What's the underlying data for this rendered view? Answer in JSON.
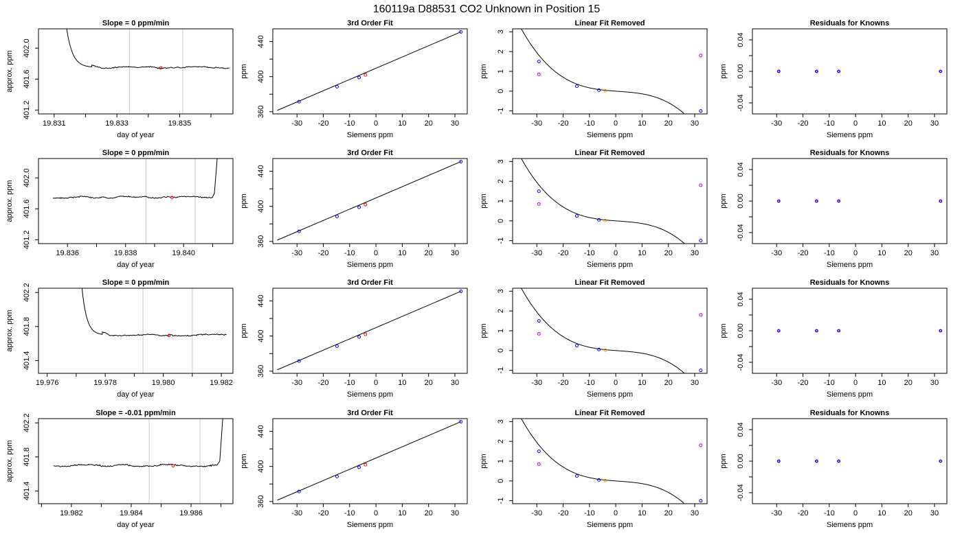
{
  "suptitle": "160119a     D88531    CO2 Unknown in Position  15",
  "colors": {
    "known_points": "#0000ff",
    "unknown_point": "#ff0000",
    "unknown_point_alt": "#ff8c00",
    "raw_residual_points": "#cc00cc",
    "curve": "#000000",
    "time_window_lines": "#c8c8c8"
  },
  "chart_data": [
    {
      "type": "line",
      "row": 0,
      "col": 0,
      "title": "Slope =  0  ppm/min",
      "xlabel": "day of year",
      "ylabel": "approx. ppm",
      "xlim": [
        19.8305,
        19.8367
      ],
      "ylim": [
        401.15,
        402.25
      ],
      "xticks": [
        19.831,
        19.833,
        19.835
      ],
      "xtick_labels": [
        "19.831",
        "19.833",
        "19.835"
      ],
      "xminor": [
        19.832,
        19.834,
        19.836
      ],
      "yticks": [
        401.2,
        401.6,
        402.0
      ],
      "ytick_labels": [
        "401.2",
        "401.6",
        "402.0"
      ],
      "window": [
        19.8334,
        19.8351
      ],
      "trace": {
        "start_x": 19.8314,
        "start_y": 402.25,
        "drop_end_x": 19.8322,
        "plateau_x": 19.8325,
        "end_x": 19.8366,
        "baseline": 401.75,
        "amplitude": 0.012,
        "seed": 3
      },
      "point": {
        "x": 19.8344,
        "y": 401.745
      }
    },
    {
      "type": "line",
      "row": 1,
      "col": 0,
      "title": "Slope =  0  ppm/min",
      "xlabel": "day of year",
      "ylabel": "approx. ppm",
      "xlim": [
        19.835,
        19.8417
      ],
      "ylim": [
        401.15,
        402.25
      ],
      "xticks": [
        19.836,
        19.838,
        19.84
      ],
      "xtick_labels": [
        "19.836",
        "19.838",
        "19.840"
      ],
      "xminor": [
        19.837,
        19.839,
        19.841
      ],
      "yticks": [
        401.2,
        401.6,
        402.0
      ],
      "ytick_labels": [
        "401.2",
        "401.6",
        "402.0"
      ],
      "window": [
        19.8387,
        19.8404
      ],
      "trace": {
        "start_x": 19.8355,
        "end_x": 19.841,
        "baseline": 401.75,
        "amplitude": 0.014,
        "rise": true,
        "rise_start_x": 19.841,
        "rise_end_x": 19.8412,
        "seed": 7
      },
      "point": {
        "x": 19.8396,
        "y": 401.745
      }
    },
    {
      "type": "line",
      "row": 2,
      "col": 0,
      "title": "Slope =  0  ppm/min",
      "xlabel": "day of year",
      "ylabel": "approx. ppm",
      "xlim": [
        19.9757,
        19.9824
      ],
      "ylim": [
        401.25,
        402.25
      ],
      "xticks": [
        19.976,
        19.978,
        19.98,
        19.982
      ],
      "xtick_labels": [
        "19.976",
        "19.978",
        "19.980",
        "19.982"
      ],
      "xminor": [
        19.977,
        19.979,
        19.981
      ],
      "yticks": [
        401.4,
        401.8,
        402.2
      ],
      "ytick_labels": [
        "401.4",
        "401.8",
        "402.2"
      ],
      "window": [
        19.9793,
        19.981
      ],
      "trace": {
        "start_x": 19.9772,
        "start_y": 402.25,
        "drop_end_x": 19.9779,
        "plateau_x": 19.9782,
        "end_x": 19.9822,
        "baseline": 401.7,
        "amplitude": 0.012,
        "seed": 11
      },
      "point": {
        "x": 19.9802,
        "y": 401.695
      }
    },
    {
      "type": "line",
      "row": 3,
      "col": 0,
      "title": "Slope =  -0.01  ppm/min",
      "xlabel": "day of year",
      "ylabel": "approx. ppm",
      "xlim": [
        19.9809,
        19.9874
      ],
      "ylim": [
        401.25,
        402.25
      ],
      "xticks": [
        19.982,
        19.984,
        19.986
      ],
      "xtick_labels": [
        "19.982",
        "19.984",
        "19.986"
      ],
      "xminor": [
        19.981,
        19.983,
        19.985,
        19.987
      ],
      "yticks": [
        401.4,
        401.8,
        402.2
      ],
      "ytick_labels": [
        "401.4",
        "401.8",
        "402.2"
      ],
      "window": [
        19.9846,
        19.9863
      ],
      "trace": {
        "start_x": 19.9814,
        "end_x": 19.9869,
        "baseline": 401.7,
        "amplitude": 0.014,
        "rise": true,
        "rise_start_x": 19.9869,
        "rise_end_x": 19.9871,
        "seed": 19
      },
      "point": {
        "x": 19.9854,
        "y": 401.695
      }
    },
    {
      "type": "scatter",
      "row": 0,
      "col": 1,
      "title": "3rd Order Fit",
      "xlabel": "Siemens ppm",
      "ylabel": "ppm",
      "xlim": [
        -39.2,
        34.7
      ],
      "ylim": [
        357.5,
        454.5
      ],
      "xticks": [
        -30,
        -20,
        -10,
        0,
        10,
        20,
        30
      ],
      "xtick_labels": [
        "-30",
        "-20",
        "-10",
        "0",
        "10",
        "20",
        "30"
      ],
      "yticks": [
        360,
        380,
        400,
        420,
        440
      ],
      "ytick_labels": [
        "360",
        "",
        "400",
        "",
        "440"
      ],
      "fit_line": {
        "x": [
          -37.5,
          32.3
        ],
        "y": [
          361.5,
          451.0
        ]
      },
      "knowns": {
        "x": [
          -29.2,
          -14.8,
          -6.4,
          32.3
        ],
        "y": [
          371.5,
          388.5,
          399.0,
          451.0
        ]
      },
      "unknown": {
        "x": -4.0,
        "y": 402.0
      }
    },
    {
      "type": "scatter",
      "row": 1,
      "col": 1,
      "title": "3rd Order Fit",
      "xlabel": "Siemens ppm",
      "ylabel": "ppm",
      "xlim": [
        -39.2,
        34.7
      ],
      "ylim": [
        357.5,
        454.5
      ],
      "xticks": [
        -30,
        -20,
        -10,
        0,
        10,
        20,
        30
      ],
      "xtick_labels": [
        "-30",
        "-20",
        "-10",
        "0",
        "10",
        "20",
        "30"
      ],
      "yticks": [
        360,
        380,
        400,
        420,
        440
      ],
      "ytick_labels": [
        "360",
        "",
        "400",
        "",
        "440"
      ],
      "fit_line": {
        "x": [
          -37.5,
          32.3
        ],
        "y": [
          361.5,
          451.0
        ]
      },
      "knowns": {
        "x": [
          -29.2,
          -14.8,
          -6.4,
          32.3
        ],
        "y": [
          371.5,
          388.5,
          399.0,
          451.0
        ]
      },
      "unknown": {
        "x": -4.0,
        "y": 402.0
      }
    },
    {
      "type": "scatter",
      "row": 2,
      "col": 1,
      "title": "3rd Order Fit",
      "xlabel": "Siemens ppm",
      "ylabel": "ppm",
      "xlim": [
        -39.2,
        34.7
      ],
      "ylim": [
        357.5,
        454.5
      ],
      "xticks": [
        -30,
        -20,
        -10,
        0,
        10,
        20,
        30
      ],
      "xtick_labels": [
        "-30",
        "-20",
        "-10",
        "0",
        "10",
        "20",
        "30"
      ],
      "yticks": [
        360,
        380,
        400,
        420,
        440
      ],
      "ytick_labels": [
        "360",
        "",
        "400",
        "",
        "440"
      ],
      "fit_line": {
        "x": [
          -37.5,
          32.3
        ],
        "y": [
          361.5,
          451.0
        ]
      },
      "knowns": {
        "x": [
          -29.2,
          -14.8,
          -6.4,
          32.3
        ],
        "y": [
          371.5,
          388.5,
          399.0,
          451.0
        ]
      },
      "unknown": {
        "x": -4.0,
        "y": 402.0
      }
    },
    {
      "type": "scatter",
      "row": 3,
      "col": 1,
      "title": "3rd Order Fit",
      "xlabel": "Siemens ppm",
      "ylabel": "ppm",
      "xlim": [
        -39.2,
        34.7
      ],
      "ylim": [
        357.5,
        454.5
      ],
      "xticks": [
        -30,
        -20,
        -10,
        0,
        10,
        20,
        30
      ],
      "xtick_labels": [
        "-30",
        "-20",
        "-10",
        "0",
        "10",
        "20",
        "30"
      ],
      "yticks": [
        360,
        380,
        400,
        420,
        440
      ],
      "ytick_labels": [
        "360",
        "",
        "400",
        "",
        "440"
      ],
      "fit_line": {
        "x": [
          -37.5,
          32.3
        ],
        "y": [
          361.5,
          451.0
        ]
      },
      "knowns": {
        "x": [
          -29.2,
          -14.8,
          -6.4,
          32.3
        ],
        "y": [
          371.5,
          388.5,
          399.0,
          451.0
        ]
      },
      "unknown": {
        "x": -4.0,
        "y": 402.0
      }
    },
    {
      "type": "scatter",
      "row": 0,
      "col": 2,
      "title": "Linear Fit Removed",
      "xlabel": "Siemens ppm",
      "ylabel": "ppm",
      "xlim": [
        -39.2,
        34.7
      ],
      "ylim": [
        -1.15,
        3.15
      ],
      "xticks": [
        -30,
        -20,
        -10,
        0,
        10,
        20,
        30
      ],
      "xtick_labels": [
        "-30",
        "-20",
        "-10",
        "0",
        "10",
        "20",
        "30"
      ],
      "yticks": [
        -1,
        0,
        1,
        2,
        3
      ],
      "ytick_labels": [
        "-1",
        "0",
        "1",
        "2",
        "3"
      ],
      "curve": {
        "coef": [
          0.0,
          -0.0095,
          0.000152,
          -5.65e-05
        ],
        "x_from": -37.5,
        "x_to": 32.6
      },
      "knowns": {
        "x": [
          -29.2,
          -14.8,
          -6.4,
          32.3
        ],
        "y": [
          1.5,
          0.25,
          0.05,
          -1.0
        ]
      },
      "raw": {
        "x": [
          -29.2,
          32.3
        ],
        "y": [
          0.85,
          1.8
        ]
      },
      "unknown": {
        "x": -4.0,
        "y": 0.02
      }
    },
    {
      "type": "scatter",
      "row": 1,
      "col": 2,
      "title": "Linear Fit Removed",
      "xlabel": "Siemens ppm",
      "ylabel": "ppm",
      "xlim": [
        -39.2,
        34.7
      ],
      "ylim": [
        -1.15,
        3.15
      ],
      "xticks": [
        -30,
        -20,
        -10,
        0,
        10,
        20,
        30
      ],
      "xtick_labels": [
        "-30",
        "-20",
        "-10",
        "0",
        "10",
        "20",
        "30"
      ],
      "yticks": [
        -1,
        0,
        1,
        2,
        3
      ],
      "ytick_labels": [
        "-1",
        "0",
        "1",
        "2",
        "3"
      ],
      "curve": {
        "coef": [
          0.0,
          -0.0095,
          0.000152,
          -5.65e-05
        ],
        "x_from": -37.5,
        "x_to": 32.6
      },
      "knowns": {
        "x": [
          -29.2,
          -14.8,
          -6.4,
          32.3
        ],
        "y": [
          1.5,
          0.25,
          0.05,
          -1.0
        ]
      },
      "raw": {
        "x": [
          -29.2,
          32.3
        ],
        "y": [
          0.85,
          1.8
        ]
      },
      "unknown": {
        "x": -4.0,
        "y": 0.02
      }
    },
    {
      "type": "scatter",
      "row": 2,
      "col": 2,
      "title": "Linear Fit Removed",
      "xlabel": "Siemens ppm",
      "ylabel": "ppm",
      "xlim": [
        -39.2,
        34.7
      ],
      "ylim": [
        -1.15,
        3.15
      ],
      "xticks": [
        -30,
        -20,
        -10,
        0,
        10,
        20,
        30
      ],
      "xtick_labels": [
        "-30",
        "-20",
        "-10",
        "0",
        "10",
        "20",
        "30"
      ],
      "yticks": [
        -1,
        0,
        1,
        2,
        3
      ],
      "ytick_labels": [
        "-1",
        "0",
        "1",
        "2",
        "3"
      ],
      "curve": {
        "coef": [
          0.0,
          -0.0095,
          0.000152,
          -5.65e-05
        ],
        "x_from": -37.5,
        "x_to": 32.6
      },
      "knowns": {
        "x": [
          -29.2,
          -14.8,
          -6.4,
          32.3
        ],
        "y": [
          1.5,
          0.25,
          0.05,
          -1.0
        ]
      },
      "raw": {
        "x": [
          -29.2,
          32.3
        ],
        "y": [
          0.85,
          1.8
        ]
      },
      "unknown": {
        "x": -4.0,
        "y": 0.02
      }
    },
    {
      "type": "scatter",
      "row": 3,
      "col": 2,
      "title": "Linear Fit Removed",
      "xlabel": "Siemens ppm",
      "ylabel": "ppm",
      "xlim": [
        -39.2,
        34.7
      ],
      "ylim": [
        -1.15,
        3.15
      ],
      "xticks": [
        -30,
        -20,
        -10,
        0,
        10,
        20,
        30
      ],
      "xtick_labels": [
        "-30",
        "-20",
        "-10",
        "0",
        "10",
        "20",
        "30"
      ],
      "yticks": [
        -1,
        0,
        1,
        2,
        3
      ],
      "ytick_labels": [
        "-1",
        "0",
        "1",
        "2",
        "3"
      ],
      "curve": {
        "coef": [
          0.0,
          -0.0095,
          0.000152,
          -5.65e-05
        ],
        "x_from": -37.5,
        "x_to": 32.6
      },
      "knowns": {
        "x": [
          -29.2,
          -14.8,
          -6.4,
          32.3
        ],
        "y": [
          1.5,
          0.25,
          0.05,
          -1.0
        ]
      },
      "raw": {
        "x": [
          -29.2,
          32.3
        ],
        "y": [
          0.85,
          1.8
        ]
      },
      "unknown": {
        "x": -4.0,
        "y": 0.02
      }
    },
    {
      "type": "scatter",
      "row": 0,
      "col": 3,
      "title": "Residuals for Knowns",
      "xlabel": "Siemens ppm",
      "ylabel": "ppm",
      "xlim": [
        -39.2,
        34.7
      ],
      "ylim": [
        -0.054,
        0.054
      ],
      "xticks": [
        -30,
        -20,
        -10,
        0,
        10,
        20,
        30
      ],
      "xtick_labels": [
        "-30",
        "-20",
        "-10",
        "0",
        "10",
        "20",
        "30"
      ],
      "yticks": [
        -0.04,
        -0.02,
        0.0,
        0.02,
        0.04
      ],
      "ytick_labels": [
        "-0.04",
        "",
        "0.00",
        "",
        "0.04"
      ],
      "knowns": {
        "x": [
          -29.2,
          -14.8,
          -6.4,
          32.3
        ],
        "y": [
          0.0,
          0.0,
          0.0,
          0.0
        ]
      }
    },
    {
      "type": "scatter",
      "row": 1,
      "col": 3,
      "title": "Residuals for Knowns",
      "xlabel": "Siemens ppm",
      "ylabel": "ppm",
      "xlim": [
        -39.2,
        34.7
      ],
      "ylim": [
        -0.054,
        0.054
      ],
      "xticks": [
        -30,
        -20,
        -10,
        0,
        10,
        20,
        30
      ],
      "xtick_labels": [
        "-30",
        "-20",
        "-10",
        "0",
        "10",
        "20",
        "30"
      ],
      "yticks": [
        -0.04,
        -0.02,
        0.0,
        0.02,
        0.04
      ],
      "ytick_labels": [
        "-0.04",
        "",
        "0.00",
        "",
        "0.04"
      ],
      "knowns": {
        "x": [
          -29.2,
          -14.8,
          -6.4,
          32.3
        ],
        "y": [
          0.0,
          0.0,
          0.0,
          0.0
        ]
      }
    },
    {
      "type": "scatter",
      "row": 2,
      "col": 3,
      "title": "Residuals for Knowns",
      "xlabel": "Siemens ppm",
      "ylabel": "ppm",
      "xlim": [
        -39.2,
        34.7
      ],
      "ylim": [
        -0.054,
        0.054
      ],
      "xticks": [
        -30,
        -20,
        -10,
        0,
        10,
        20,
        30
      ],
      "xtick_labels": [
        "-30",
        "-20",
        "-10",
        "0",
        "10",
        "20",
        "30"
      ],
      "yticks": [
        -0.04,
        -0.02,
        0.0,
        0.02,
        0.04
      ],
      "ytick_labels": [
        "-0.04",
        "",
        "0.00",
        "",
        "0.04"
      ],
      "knowns": {
        "x": [
          -29.2,
          -14.8,
          -6.4,
          32.3
        ],
        "y": [
          0.0,
          0.0,
          0.0,
          0.0
        ]
      }
    },
    {
      "type": "scatter",
      "row": 3,
      "col": 3,
      "title": "Residuals for Knowns",
      "xlabel": "Siemens ppm",
      "ylabel": "ppm",
      "xlim": [
        -39.2,
        34.7
      ],
      "ylim": [
        -0.054,
        0.054
      ],
      "xticks": [
        -30,
        -20,
        -10,
        0,
        10,
        20,
        30
      ],
      "xtick_labels": [
        "-30",
        "-20",
        "-10",
        "0",
        "10",
        "20",
        "30"
      ],
      "yticks": [
        -0.04,
        -0.02,
        0.0,
        0.02,
        0.04
      ],
      "ytick_labels": [
        "-0.04",
        "",
        "0.00",
        "",
        "0.04"
      ],
      "knowns": {
        "x": [
          -29.2,
          -14.8,
          -6.4,
          32.3
        ],
        "y": [
          0.0,
          0.0,
          0.0,
          0.0
        ]
      }
    }
  ]
}
